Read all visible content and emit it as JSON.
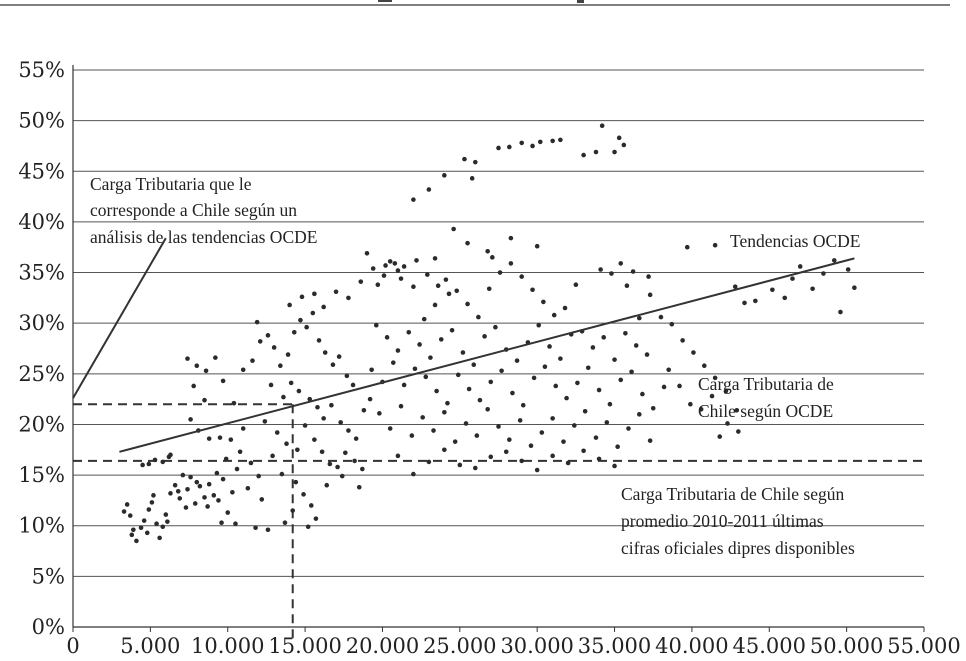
{
  "chart_data": {
    "type": "scatter",
    "title": "",
    "xlabel": "",
    "ylabel": "",
    "xlim": [
      0,
      55000
    ],
    "ylim": [
      0,
      55
    ],
    "x_ticks": [
      {
        "value": 0,
        "label": "0"
      },
      {
        "value": 5000,
        "label": "5.000"
      },
      {
        "value": 10000,
        "label": "10.000"
      },
      {
        "value": 15000,
        "label": "15.000"
      },
      {
        "value": 20000,
        "label": "20.000"
      },
      {
        "value": 25000,
        "label": "25.000"
      },
      {
        "value": 30000,
        "label": "30.000"
      },
      {
        "value": 35000,
        "label": "35.000"
      },
      {
        "value": 40000,
        "label": "40.000"
      },
      {
        "value": 45000,
        "label": "45.000"
      },
      {
        "value": 50000,
        "label": "50.000"
      },
      {
        "value": 55000,
        "label": "55.000"
      }
    ],
    "y_ticks": [
      {
        "value": 0,
        "label": "0%"
      },
      {
        "value": 5,
        "label": "5%"
      },
      {
        "value": 10,
        "label": "10%"
      },
      {
        "value": 15,
        "label": "15%"
      },
      {
        "value": 20,
        "label": "20%"
      },
      {
        "value": 25,
        "label": "25%"
      },
      {
        "value": 30,
        "label": "30%"
      },
      {
        "value": 35,
        "label": "35%"
      },
      {
        "value": 40,
        "label": "40%"
      },
      {
        "value": 45,
        "label": "45%"
      },
      {
        "value": 50,
        "label": "50%"
      },
      {
        "value": 55,
        "label": "55%"
      }
    ],
    "grid": "horizontal",
    "trend_line": {
      "x": [
        3000,
        50500
      ],
      "y": [
        17.3,
        36.4
      ]
    },
    "reference_lines": {
      "chile_oecd": {
        "y": 22,
        "x_end": 14200
      },
      "chile_official": {
        "y": 16.4
      },
      "chile_gdp": {
        "x": 14200
      }
    },
    "pointer_line": {
      "x": [
        0,
        6000
      ],
      "y": [
        22.6,
        38.4
      ]
    },
    "points": [
      [
        6200,
        16.8
      ],
      [
        6300,
        17.0
      ],
      [
        4500,
        16.0
      ],
      [
        4900,
        16.1
      ],
      [
        5300,
        16.5
      ],
      [
        5800,
        16.3
      ],
      [
        3500,
        12.1
      ],
      [
        3700,
        11.0
      ],
      [
        3900,
        9.6
      ],
      [
        4100,
        8.5
      ],
      [
        4400,
        9.8
      ],
      [
        4600,
        10.5
      ],
      [
        4900,
        11.6
      ],
      [
        5100,
        12.3
      ],
      [
        5400,
        10.2
      ],
      [
        5600,
        8.8
      ],
      [
        5800,
        9.9
      ],
      [
        6000,
        11.1
      ],
      [
        6300,
        13.2
      ],
      [
        6600,
        14.0
      ],
      [
        6900,
        12.7
      ],
      [
        7100,
        15.0
      ],
      [
        7400,
        13.6
      ],
      [
        7600,
        14.8
      ],
      [
        7900,
        12.2
      ],
      [
        8200,
        13.9
      ],
      [
        8500,
        12.8
      ],
      [
        8800,
        14.1
      ],
      [
        9100,
        13.0
      ],
      [
        9400,
        12.5
      ],
      [
        9700,
        14.6
      ],
      [
        10000,
        11.3
      ],
      [
        10300,
        13.3
      ],
      [
        3300,
        11.4
      ],
      [
        3800,
        9.1
      ],
      [
        4800,
        9.3
      ],
      [
        5200,
        13.0
      ],
      [
        6100,
        10.4
      ],
      [
        6800,
        13.4
      ],
      [
        7300,
        11.8
      ],
      [
        8000,
        14.3
      ],
      [
        8700,
        11.9
      ],
      [
        9300,
        15.2
      ],
      [
        7400,
        26.5
      ],
      [
        8000,
        25.8
      ],
      [
        8600,
        25.3
      ],
      [
        9200,
        26.6
      ],
      [
        7600,
        20.5
      ],
      [
        8100,
        19.4
      ],
      [
        8800,
        18.6
      ],
      [
        9500,
        18.7
      ],
      [
        10200,
        18.5
      ],
      [
        7800,
        23.8
      ],
      [
        8500,
        22.4
      ],
      [
        9700,
        24.3
      ],
      [
        10400,
        22.1
      ],
      [
        11000,
        19.6
      ],
      [
        10800,
        17.3
      ],
      [
        11500,
        16.2
      ],
      [
        12000,
        14.9
      ],
      [
        9900,
        16.6
      ],
      [
        10600,
        15.6
      ],
      [
        11300,
        13.7
      ],
      [
        12200,
        12.6
      ],
      [
        9600,
        10.3
      ],
      [
        10500,
        10.2
      ],
      [
        11800,
        9.8
      ],
      [
        12600,
        9.6
      ],
      [
        11000,
        25.4
      ],
      [
        11600,
        26.3
      ],
      [
        12100,
        28.2
      ],
      [
        12600,
        28.8
      ],
      [
        13000,
        27.6
      ],
      [
        13400,
        25.8
      ],
      [
        13900,
        26.9
      ],
      [
        14300,
        29.1
      ],
      [
        14700,
        30.3
      ],
      [
        15100,
        29.6
      ],
      [
        15500,
        31.0
      ],
      [
        15900,
        28.3
      ],
      [
        16300,
        27.1
      ],
      [
        16800,
        25.9
      ],
      [
        17200,
        26.7
      ],
      [
        17700,
        24.8
      ],
      [
        18100,
        23.9
      ],
      [
        11900,
        30.1
      ],
      [
        12800,
        23.9
      ],
      [
        13600,
        22.7
      ],
      [
        14100,
        24.1
      ],
      [
        14600,
        23.3
      ],
      [
        15300,
        22.5
      ],
      [
        15800,
        21.7
      ],
      [
        16200,
        20.6
      ],
      [
        16700,
        21.9
      ],
      [
        17300,
        20.2
      ],
      [
        17800,
        19.4
      ],
      [
        18300,
        18.6
      ],
      [
        18800,
        21.4
      ],
      [
        19200,
        22.5
      ],
      [
        12400,
        20.3
      ],
      [
        13200,
        19.2
      ],
      [
        13800,
        18.1
      ],
      [
        14500,
        17.5
      ],
      [
        15000,
        19.9
      ],
      [
        15600,
        18.5
      ],
      [
        16100,
        17.3
      ],
      [
        16600,
        16.1
      ],
      [
        17100,
        15.8
      ],
      [
        17600,
        17.2
      ],
      [
        18200,
        16.4
      ],
      [
        18700,
        15.6
      ],
      [
        12900,
        16.9
      ],
      [
        13500,
        15.1
      ],
      [
        14400,
        14.3
      ],
      [
        14900,
        13.1
      ],
      [
        15400,
        12.0
      ],
      [
        15700,
        10.7
      ],
      [
        15200,
        9.9
      ],
      [
        14200,
        11.5
      ],
      [
        13700,
        10.3
      ],
      [
        16400,
        14.0
      ],
      [
        17400,
        14.9
      ],
      [
        18500,
        13.8
      ],
      [
        14000,
        31.8
      ],
      [
        14800,
        32.6
      ],
      [
        15600,
        32.9
      ],
      [
        16200,
        31.6
      ],
      [
        17000,
        33.1
      ],
      [
        17800,
        32.5
      ],
      [
        18600,
        34.1
      ],
      [
        19400,
        35.4
      ],
      [
        20100,
        34.7
      ],
      [
        20800,
        35.9
      ],
      [
        21400,
        35.6
      ],
      [
        22200,
        36.2
      ],
      [
        22900,
        34.8
      ],
      [
        23600,
        33.7
      ],
      [
        24300,
        32.9
      ],
      [
        19000,
        36.9
      ],
      [
        19700,
        33.8
      ],
      [
        20500,
        36.1
      ],
      [
        21200,
        34.4
      ],
      [
        22000,
        33.6
      ],
      [
        22700,
        30.4
      ],
      [
        23400,
        31.8
      ],
      [
        24100,
        34.3
      ],
      [
        24800,
        33.2
      ],
      [
        25500,
        31.9
      ],
      [
        26200,
        30.6
      ],
      [
        26900,
        33.4
      ],
      [
        27600,
        35.0
      ],
      [
        28300,
        35.9
      ],
      [
        29000,
        34.6
      ],
      [
        29700,
        33.3
      ],
      [
        30400,
        32.1
      ],
      [
        31100,
        30.8
      ],
      [
        31800,
        31.5
      ],
      [
        32500,
        33.8
      ],
      [
        19600,
        29.8
      ],
      [
        20300,
        28.6
      ],
      [
        21000,
        27.3
      ],
      [
        21700,
        29.1
      ],
      [
        22400,
        27.9
      ],
      [
        23100,
        26.6
      ],
      [
        23800,
        28.4
      ],
      [
        24500,
        29.3
      ],
      [
        25200,
        27.1
      ],
      [
        25900,
        25.9
      ],
      [
        26600,
        28.7
      ],
      [
        27300,
        29.6
      ],
      [
        28000,
        27.4
      ],
      [
        28700,
        26.3
      ],
      [
        29400,
        28.1
      ],
      [
        30100,
        29.8
      ],
      [
        30800,
        27.7
      ],
      [
        31500,
        26.5
      ],
      [
        32200,
        28.9
      ],
      [
        32900,
        29.2
      ],
      [
        33600,
        27.6
      ],
      [
        34300,
        28.6
      ],
      [
        35000,
        26.4
      ],
      [
        35700,
        29.0
      ],
      [
        36400,
        27.8
      ],
      [
        37100,
        26.9
      ],
      [
        19300,
        25.4
      ],
      [
        20000,
        24.2
      ],
      [
        20700,
        26.1
      ],
      [
        21400,
        23.9
      ],
      [
        22100,
        25.5
      ],
      [
        22800,
        24.7
      ],
      [
        23500,
        23.3
      ],
      [
        24200,
        22.1
      ],
      [
        24900,
        24.9
      ],
      [
        25600,
        23.5
      ],
      [
        26300,
        22.4
      ],
      [
        27000,
        24.2
      ],
      [
        27700,
        25.3
      ],
      [
        28400,
        23.1
      ],
      [
        29100,
        21.9
      ],
      [
        29800,
        24.6
      ],
      [
        30500,
        25.7
      ],
      [
        31200,
        23.8
      ],
      [
        31900,
        22.6
      ],
      [
        32600,
        24.1
      ],
      [
        33300,
        25.6
      ],
      [
        34000,
        23.4
      ],
      [
        34700,
        22.0
      ],
      [
        35400,
        24.4
      ],
      [
        36100,
        25.2
      ],
      [
        36800,
        23.0
      ],
      [
        37500,
        21.6
      ],
      [
        38200,
        23.7
      ],
      [
        19800,
        21.1
      ],
      [
        20500,
        19.6
      ],
      [
        21200,
        21.8
      ],
      [
        21900,
        18.9
      ],
      [
        22600,
        20.7
      ],
      [
        23300,
        19.4
      ],
      [
        24000,
        21.2
      ],
      [
        24700,
        18.3
      ],
      [
        25400,
        20.1
      ],
      [
        26100,
        18.9
      ],
      [
        26800,
        21.5
      ],
      [
        27500,
        19.8
      ],
      [
        28200,
        18.5
      ],
      [
        28900,
        20.4
      ],
      [
        29600,
        17.9
      ],
      [
        30300,
        19.2
      ],
      [
        31000,
        20.6
      ],
      [
        31700,
        18.3
      ],
      [
        32400,
        19.9
      ],
      [
        33100,
        21.3
      ],
      [
        33800,
        18.7
      ],
      [
        34500,
        20.2
      ],
      [
        35200,
        17.8
      ],
      [
        35900,
        19.6
      ],
      [
        36600,
        21.0
      ],
      [
        37300,
        18.4
      ],
      [
        21000,
        16.9
      ],
      [
        22000,
        15.1
      ],
      [
        23000,
        16.3
      ],
      [
        24000,
        17.5
      ],
      [
        25000,
        16.0
      ],
      [
        26000,
        15.7
      ],
      [
        27000,
        16.8
      ],
      [
        28000,
        17.3
      ],
      [
        29000,
        16.4
      ],
      [
        30000,
        15.5
      ],
      [
        31000,
        16.9
      ],
      [
        32000,
        16.2
      ],
      [
        33000,
        17.4
      ],
      [
        34000,
        16.6
      ],
      [
        35000,
        15.9
      ],
      [
        38500,
        25.4
      ],
      [
        39200,
        23.8
      ],
      [
        39900,
        22.0
      ],
      [
        40600,
        21.5
      ],
      [
        41300,
        22.8
      ],
      [
        38000,
        30.6
      ],
      [
        38700,
        29.9
      ],
      [
        39400,
        28.3
      ],
      [
        40100,
        27.1
      ],
      [
        40800,
        25.8
      ],
      [
        41500,
        24.6
      ],
      [
        42200,
        23.3
      ],
      [
        42900,
        21.4
      ],
      [
        39700,
        37.5
      ],
      [
        41500,
        37.7
      ],
      [
        42800,
        33.6
      ],
      [
        43400,
        32.0
      ],
      [
        44100,
        32.2
      ],
      [
        45200,
        33.3
      ],
      [
        46000,
        32.5
      ],
      [
        47000,
        35.6
      ],
      [
        47800,
        33.4
      ],
      [
        48500,
        34.9
      ],
      [
        49200,
        36.2
      ],
      [
        49600,
        31.1
      ],
      [
        50100,
        35.3
      ],
      [
        50500,
        33.5
      ],
      [
        46500,
        34.4
      ],
      [
        43000,
        19.3
      ],
      [
        41800,
        18.8
      ],
      [
        42300,
        20.1
      ],
      [
        36600,
        30.5
      ],
      [
        37300,
        32.8
      ],
      [
        35800,
        33.7
      ],
      [
        36200,
        35.1
      ],
      [
        34800,
        34.9
      ],
      [
        34100,
        35.3
      ],
      [
        35400,
        35.9
      ],
      [
        37200,
        34.6
      ],
      [
        22000,
        42.2
      ],
      [
        23000,
        43.2
      ],
      [
        24000,
        44.6
      ],
      [
        25300,
        46.2
      ],
      [
        25800,
        44.3
      ],
      [
        26000,
        45.9
      ],
      [
        27500,
        47.3
      ],
      [
        28200,
        47.4
      ],
      [
        29000,
        47.8
      ],
      [
        29700,
        47.5
      ],
      [
        30200,
        47.9
      ],
      [
        31000,
        48.0
      ],
      [
        31500,
        48.1
      ],
      [
        33000,
        46.6
      ],
      [
        33800,
        46.9
      ],
      [
        34200,
        49.5
      ],
      [
        35000,
        46.9
      ],
      [
        35300,
        48.3
      ],
      [
        35600,
        47.6
      ],
      [
        24600,
        39.3
      ],
      [
        25500,
        37.9
      ],
      [
        26800,
        37.1
      ],
      [
        28300,
        38.4
      ],
      [
        30000,
        37.6
      ],
      [
        23400,
        36.4
      ],
      [
        27100,
        36.5
      ],
      [
        20200,
        35.7
      ],
      [
        21000,
        35.2
      ]
    ]
  },
  "annotations": {
    "pointer_label_line1": "Carga Tributaria que le",
    "pointer_label_line2": "corresponde a Chile según un",
    "pointer_label_line3": "análisis de las tendencias OCDE",
    "trend_label": "Tendencias OCDE",
    "oecd_label_line1": "Carga Tributaria de",
    "oecd_label_line2": "Chile según OCDE",
    "official_label_line1": "Carga Tributaria de Chile según",
    "official_label_line2": "promedio 2010-2011 últimas",
    "official_label_line3": "cifras oficiales dipres disponibles"
  }
}
